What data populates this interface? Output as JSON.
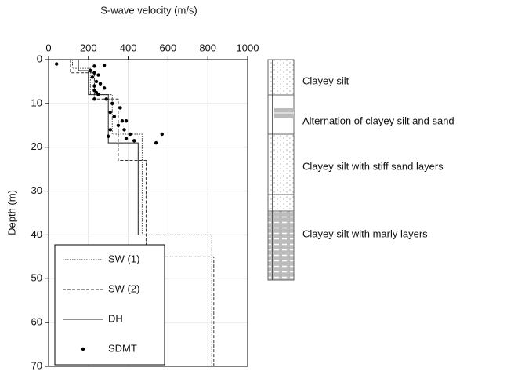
{
  "chart_data": {
    "type": "line",
    "title": "S-wave velocity (m/s)",
    "ylabel": "Depth (m)",
    "xlim": [
      0,
      1000
    ],
    "xticks": [
      0,
      200,
      400,
      600,
      800,
      1000
    ],
    "ylim": [
      0,
      70
    ],
    "yticks": [
      0,
      10,
      20,
      30,
      40,
      50,
      60,
      70
    ],
    "y_inverted": true,
    "grid": true,
    "legend": "lower left",
    "series": [
      {
        "name": "SW (1)",
        "type": "line",
        "dash": "1.5,1.5",
        "color": "#333333",
        "x": [
          120,
          120,
          210,
          210,
          320,
          320,
          470,
          470,
          820,
          820
        ],
        "y": [
          0,
          2,
          2,
          8,
          8,
          17,
          17,
          40,
          40,
          70
        ]
      },
      {
        "name": "SW (2)",
        "type": "line",
        "dash": "4,2",
        "color": "#333333",
        "x": [
          110,
          110,
          230,
          230,
          350,
          350,
          490,
          490,
          830,
          830
        ],
        "y": [
          0,
          3,
          3,
          9,
          9,
          23,
          23,
          45,
          45,
          70
        ]
      },
      {
        "name": "DH",
        "type": "line",
        "dash": "none",
        "color": "#222222",
        "x": [
          150,
          150,
          200,
          200,
          300,
          300,
          450,
          450
        ],
        "y": [
          0,
          2.5,
          2.5,
          8,
          8,
          19,
          19,
          40
        ]
      },
      {
        "name": "SDMT",
        "type": "scatter",
        "color": "#000000",
        "x": [
          40,
          230,
          280,
          210,
          230,
          250,
          220,
          240,
          260,
          230,
          280,
          230,
          240,
          250,
          230,
          290,
          320,
          310,
          360,
          330,
          370,
          390,
          350,
          310,
          380,
          410,
          570,
          300,
          390,
          540,
          430
        ],
        "y": [
          1,
          1.5,
          1.3,
          2.5,
          3,
          3.5,
          4,
          5,
          5.5,
          6,
          6.5,
          7,
          7.5,
          8,
          9,
          9,
          10,
          12,
          11,
          13,
          14,
          14,
          15,
          16,
          16,
          17,
          17,
          17.5,
          18,
          19,
          18.5
        ]
      }
    ]
  },
  "strata": [
    "Clayey silt",
    "Alternation of clayey silt and sand",
    "Clayey silt with stiff sand layers",
    "Clayey silt with marly layers"
  ]
}
